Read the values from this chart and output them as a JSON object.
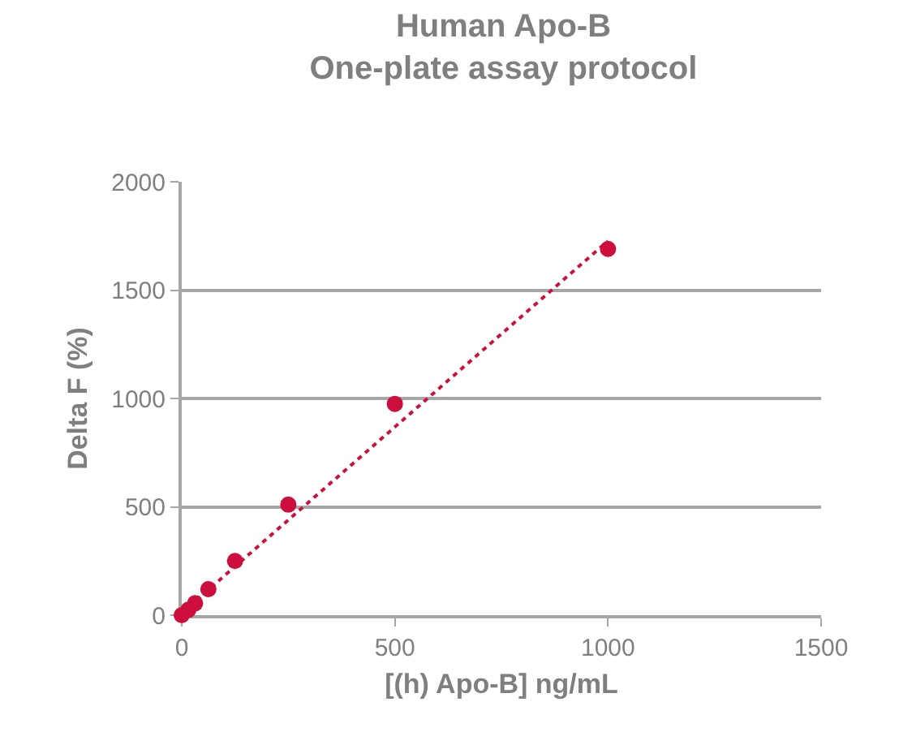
{
  "chart_data": {
    "type": "scatter",
    "title": "Human Apo-B\nOne-plate assay protocol",
    "xlabel": "[(h) Apo-B] ng/mL",
    "ylabel": "Delta F (%)",
    "xlim": [
      0,
      1500
    ],
    "xticks": [
      0,
      500,
      1000,
      1500
    ],
    "ylim": [
      0,
      2000
    ],
    "yticks": [
      0,
      500,
      1000,
      1500,
      2000
    ],
    "grid": "y",
    "series": [
      {
        "marker": "circle",
        "color": "#cc0f3c",
        "x": [
          0,
          15.6,
          31.25,
          62.5,
          125,
          250,
          500,
          1000
        ],
        "values": [
          0,
          25,
          55,
          120,
          250,
          510,
          975,
          1690
        ]
      },
      {
        "type": "line",
        "color": "#cc0f3c",
        "line_style": "dotted",
        "x": [
          0,
          1000
        ],
        "values": [
          10,
          1727
        ]
      }
    ]
  }
}
